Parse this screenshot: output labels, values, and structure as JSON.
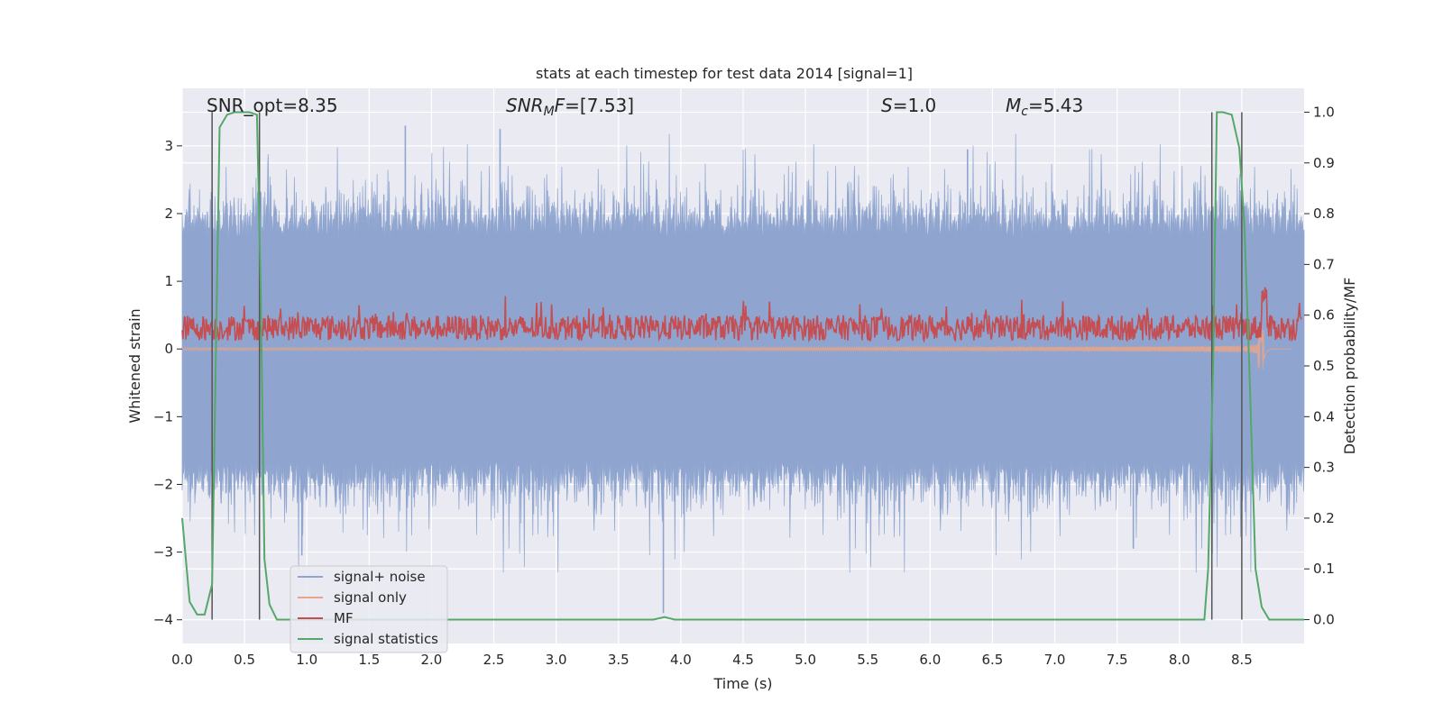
{
  "chart_data": {
    "type": "line",
    "title": "stats at each timestep for test data 2014 [signal=1]",
    "xlabel": "Time (s)",
    "ylabel_left": "Whitened strain",
    "ylabel_right": "Detection probability/MF",
    "xlim": [
      0.0,
      9.0
    ],
    "ylim_left": [
      -4.35,
      3.85
    ],
    "ylim_right": [
      -0.047,
      1.047
    ],
    "x_ticks": [
      "0.0",
      "0.5",
      "1.0",
      "1.5",
      "2.0",
      "2.5",
      "3.0",
      "3.5",
      "4.0",
      "4.5",
      "5.0",
      "5.5",
      "6.0",
      "6.5",
      "7.0",
      "7.5",
      "8.0",
      "8.5"
    ],
    "y_ticks_left": [
      "−4",
      "−3",
      "−2",
      "−1",
      "0",
      "1",
      "2",
      "3"
    ],
    "y_ticks_right": [
      "0.0",
      "0.1",
      "0.2",
      "0.3",
      "0.4",
      "0.5",
      "0.6",
      "0.7",
      "0.8",
      "0.9",
      "1.0"
    ],
    "annotations": {
      "snr_opt": "SNR_opt=8.35",
      "snr_mf_sym": "SNR",
      "snr_mf_sub": "M",
      "snr_mf_sym2": "F",
      "snr_mf_val": "=[7.53]",
      "s_sym": "S",
      "s_val": "=1.0",
      "mc_sym": "M",
      "mc_sub": "c",
      "mc_val": "=5.43"
    },
    "series": [
      {
        "name": "signal+ noise",
        "color": "#8fa5cf",
        "description": "whitened noisy strain, amplitude about ±1.8 with spikes up to ±3.3"
      },
      {
        "name": "signal only",
        "color": "#e8a487",
        "description": "chirp waveform growing in amplitude toward merger near t=8.68 s"
      },
      {
        "name": "MF",
        "color": "#c44e52",
        "description": "matched filter output in probability units, around 0.55 to 0.6"
      },
      {
        "name": "signal statistics",
        "color": "#55a868",
        "x": [
          0.0,
          0.06,
          0.12,
          0.18,
          0.24,
          0.3,
          0.36,
          0.42,
          0.48,
          0.54,
          0.6,
          0.63,
          0.66,
          0.7,
          0.76,
          3.78,
          3.87,
          3.95,
          8.2,
          8.23,
          8.27,
          8.3,
          8.35,
          8.42,
          8.48,
          8.52,
          8.56,
          8.61,
          8.66,
          8.72,
          8.8,
          9.0
        ],
        "y": [
          0.2,
          0.035,
          0.01,
          0.01,
          0.07,
          0.97,
          0.995,
          1.0,
          1.0,
          1.0,
          0.995,
          0.65,
          0.12,
          0.03,
          0.0,
          0.0,
          0.005,
          0.0,
          0.0,
          0.1,
          0.5,
          1.0,
          1.0,
          0.995,
          0.93,
          0.78,
          0.5,
          0.1,
          0.025,
          0.0,
          0.0,
          0.0
        ]
      }
    ],
    "vlines_x": [
      0.24,
      0.62,
      8.26,
      8.5
    ],
    "legend": {
      "location": "lower-left",
      "entries": [
        {
          "label": "signal+ noise",
          "color": "#8fa5cf"
        },
        {
          "label": "signal only",
          "color": "#e8a487"
        },
        {
          "label": "MF",
          "color": "#c44e52"
        },
        {
          "label": "signal statistics",
          "color": "#55a868"
        }
      ]
    }
  }
}
